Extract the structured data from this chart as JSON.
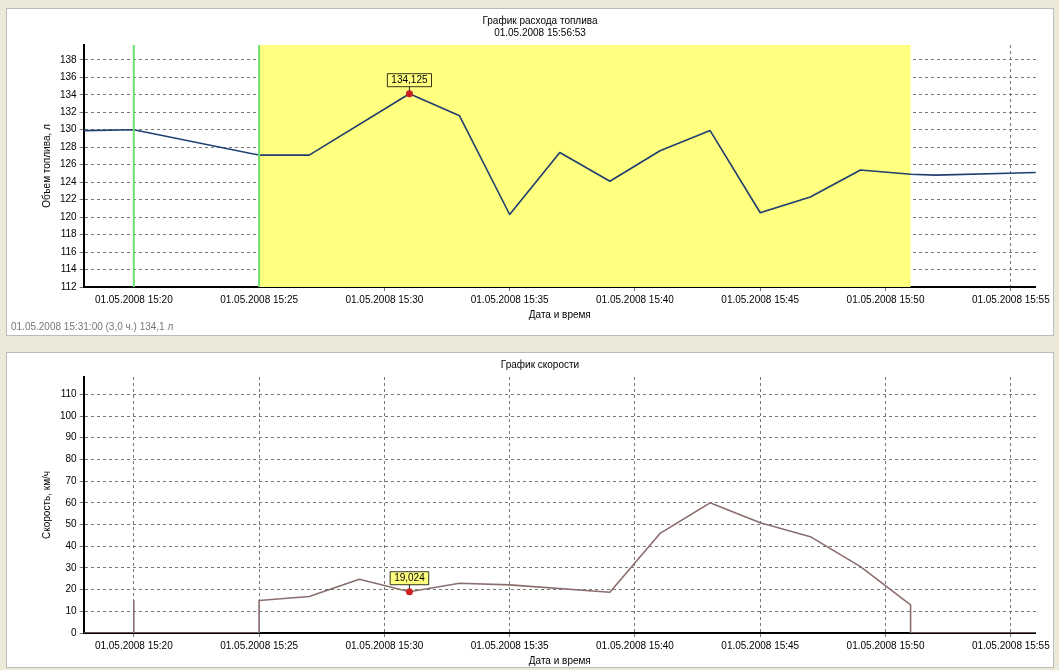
{
  "chart_data": [
    {
      "type": "line",
      "title": "График расхода топлива",
      "subtitle": "01.05.2008 15:56:53",
      "xlabel": "Дата и время",
      "ylabel": "Объем топлива, л",
      "series": [
        {
          "color": "#1f3f6f",
          "x": [
            "2008-05-01T15:18",
            "2008-05-01T15:20",
            "2008-05-01T15:25",
            "2008-05-01T15:27",
            "2008-05-01T15:31",
            "2008-05-01T15:33",
            "2008-05-01T15:35",
            "2008-05-01T15:37",
            "2008-05-01T15:39",
            "2008-05-01T15:41",
            "2008-05-01T15:43",
            "2008-05-01T15:45",
            "2008-05-01T15:47",
            "2008-05-01T15:49",
            "2008-05-01T15:51",
            "2008-05-01T15:52",
            "2008-05-01T15:56"
          ],
          "values": [
            129.9,
            130.0,
            127.1,
            127.1,
            134.125,
            131.6,
            120.3,
            127.4,
            124.1,
            127.6,
            129.9,
            120.5,
            122.3,
            125.4,
            124.9,
            124.8,
            125.1
          ]
        }
      ],
      "xlim": [
        "2008-05-01T15:18",
        "2008-05-01T15:56"
      ],
      "xticks": [
        {
          "value": "2008-05-01T15:20",
          "label": "01.05.2008 15:20"
        },
        {
          "value": "2008-05-01T15:25",
          "label": "01.05.2008 15:25"
        },
        {
          "value": "2008-05-01T15:30",
          "label": "01.05.2008 15:30"
        },
        {
          "value": "2008-05-01T15:35",
          "label": "01.05.2008 15:35"
        },
        {
          "value": "2008-05-01T15:40",
          "label": "01.05.2008 15:40"
        },
        {
          "value": "2008-05-01T15:45",
          "label": "01.05.2008 15:45"
        },
        {
          "value": "2008-05-01T15:50",
          "label": "01.05.2008 15:50"
        },
        {
          "value": "2008-05-01T15:55",
          "label": "01.05.2008 15:55"
        }
      ],
      "ylim": [
        112,
        139.7
      ],
      "yticks": [
        112,
        114,
        116,
        118,
        120,
        122,
        124,
        126,
        128,
        130,
        132,
        134,
        136,
        138
      ],
      "bands": [
        {
          "axis": "x",
          "from": "2008-05-01T15:25",
          "to": "2008-05-01T15:51",
          "color": "#ffff80"
        }
      ],
      "ref_lines": [
        {
          "axis": "x",
          "value": "2008-05-01T15:20",
          "color": "#70dd70"
        },
        {
          "axis": "x",
          "value": "2008-05-01T15:25",
          "color": "#70dd70"
        }
      ],
      "annotations": [
        {
          "text": "134,125",
          "x": "2008-05-01T15:31",
          "y": 134.125
        },
        "01.05.2008 15:31:00 (3,0 ч.) 134,1 л"
      ],
      "grid": true,
      "legend": false,
      "marker": "none",
      "line_style": "solid"
    },
    {
      "type": "line",
      "title": "График скорости",
      "xlabel": "Дата и время",
      "ylabel": "Скорость, км/ч",
      "series": [
        {
          "color": "#8b6d6d",
          "x": [
            "2008-05-01T15:18",
            "2008-05-01T15:20",
            "2008-05-01T15:20",
            "2008-05-01T15:20",
            "2008-05-01T15:25",
            "2008-05-01T15:25",
            "2008-05-01T15:27",
            "2008-05-01T15:29",
            "2008-05-01T15:31",
            "2008-05-01T15:33",
            "2008-05-01T15:35",
            "2008-05-01T15:39",
            "2008-05-01T15:41",
            "2008-05-01T15:43",
            "2008-05-01T15:45",
            "2008-05-01T15:47",
            "2008-05-01T15:49",
            "2008-05-01T15:51",
            "2008-05-01T15:51",
            "2008-05-01T15:56"
          ],
          "values": [
            0,
            0,
            15,
            0,
            0,
            15,
            16.8,
            24.8,
            19.024,
            22.9,
            22.2,
            18.8,
            45.9,
            60.0,
            50.8,
            44.4,
            30.6,
            13.0,
            0,
            0
          ]
        }
      ],
      "xlim": [
        "2008-05-01T15:18",
        "2008-05-01T15:56"
      ],
      "xticks": [
        {
          "value": "2008-05-01T15:20",
          "label": "01.05.2008 15:20"
        },
        {
          "value": "2008-05-01T15:25",
          "label": "01.05.2008 15:25"
        },
        {
          "value": "2008-05-01T15:30",
          "label": "01.05.2008 15:30"
        },
        {
          "value": "2008-05-01T15:35",
          "label": "01.05.2008 15:35"
        },
        {
          "value": "2008-05-01T15:40",
          "label": "01.05.2008 15:40"
        },
        {
          "value": "2008-05-01T15:45",
          "label": "01.05.2008 15:45"
        },
        {
          "value": "2008-05-01T15:50",
          "label": "01.05.2008 15:50"
        },
        {
          "value": "2008-05-01T15:55",
          "label": "01.05.2008 15:55"
        }
      ],
      "ylim": [
        0,
        118
      ],
      "yticks": [
        0,
        10,
        20,
        30,
        40,
        50,
        60,
        70,
        80,
        90,
        100,
        110
      ],
      "annotations": [
        {
          "text": "19,024",
          "x": "2008-05-01T15:31",
          "y": 19.024
        }
      ],
      "grid": true,
      "legend": false,
      "marker": "none",
      "line_style": "solid"
    }
  ]
}
